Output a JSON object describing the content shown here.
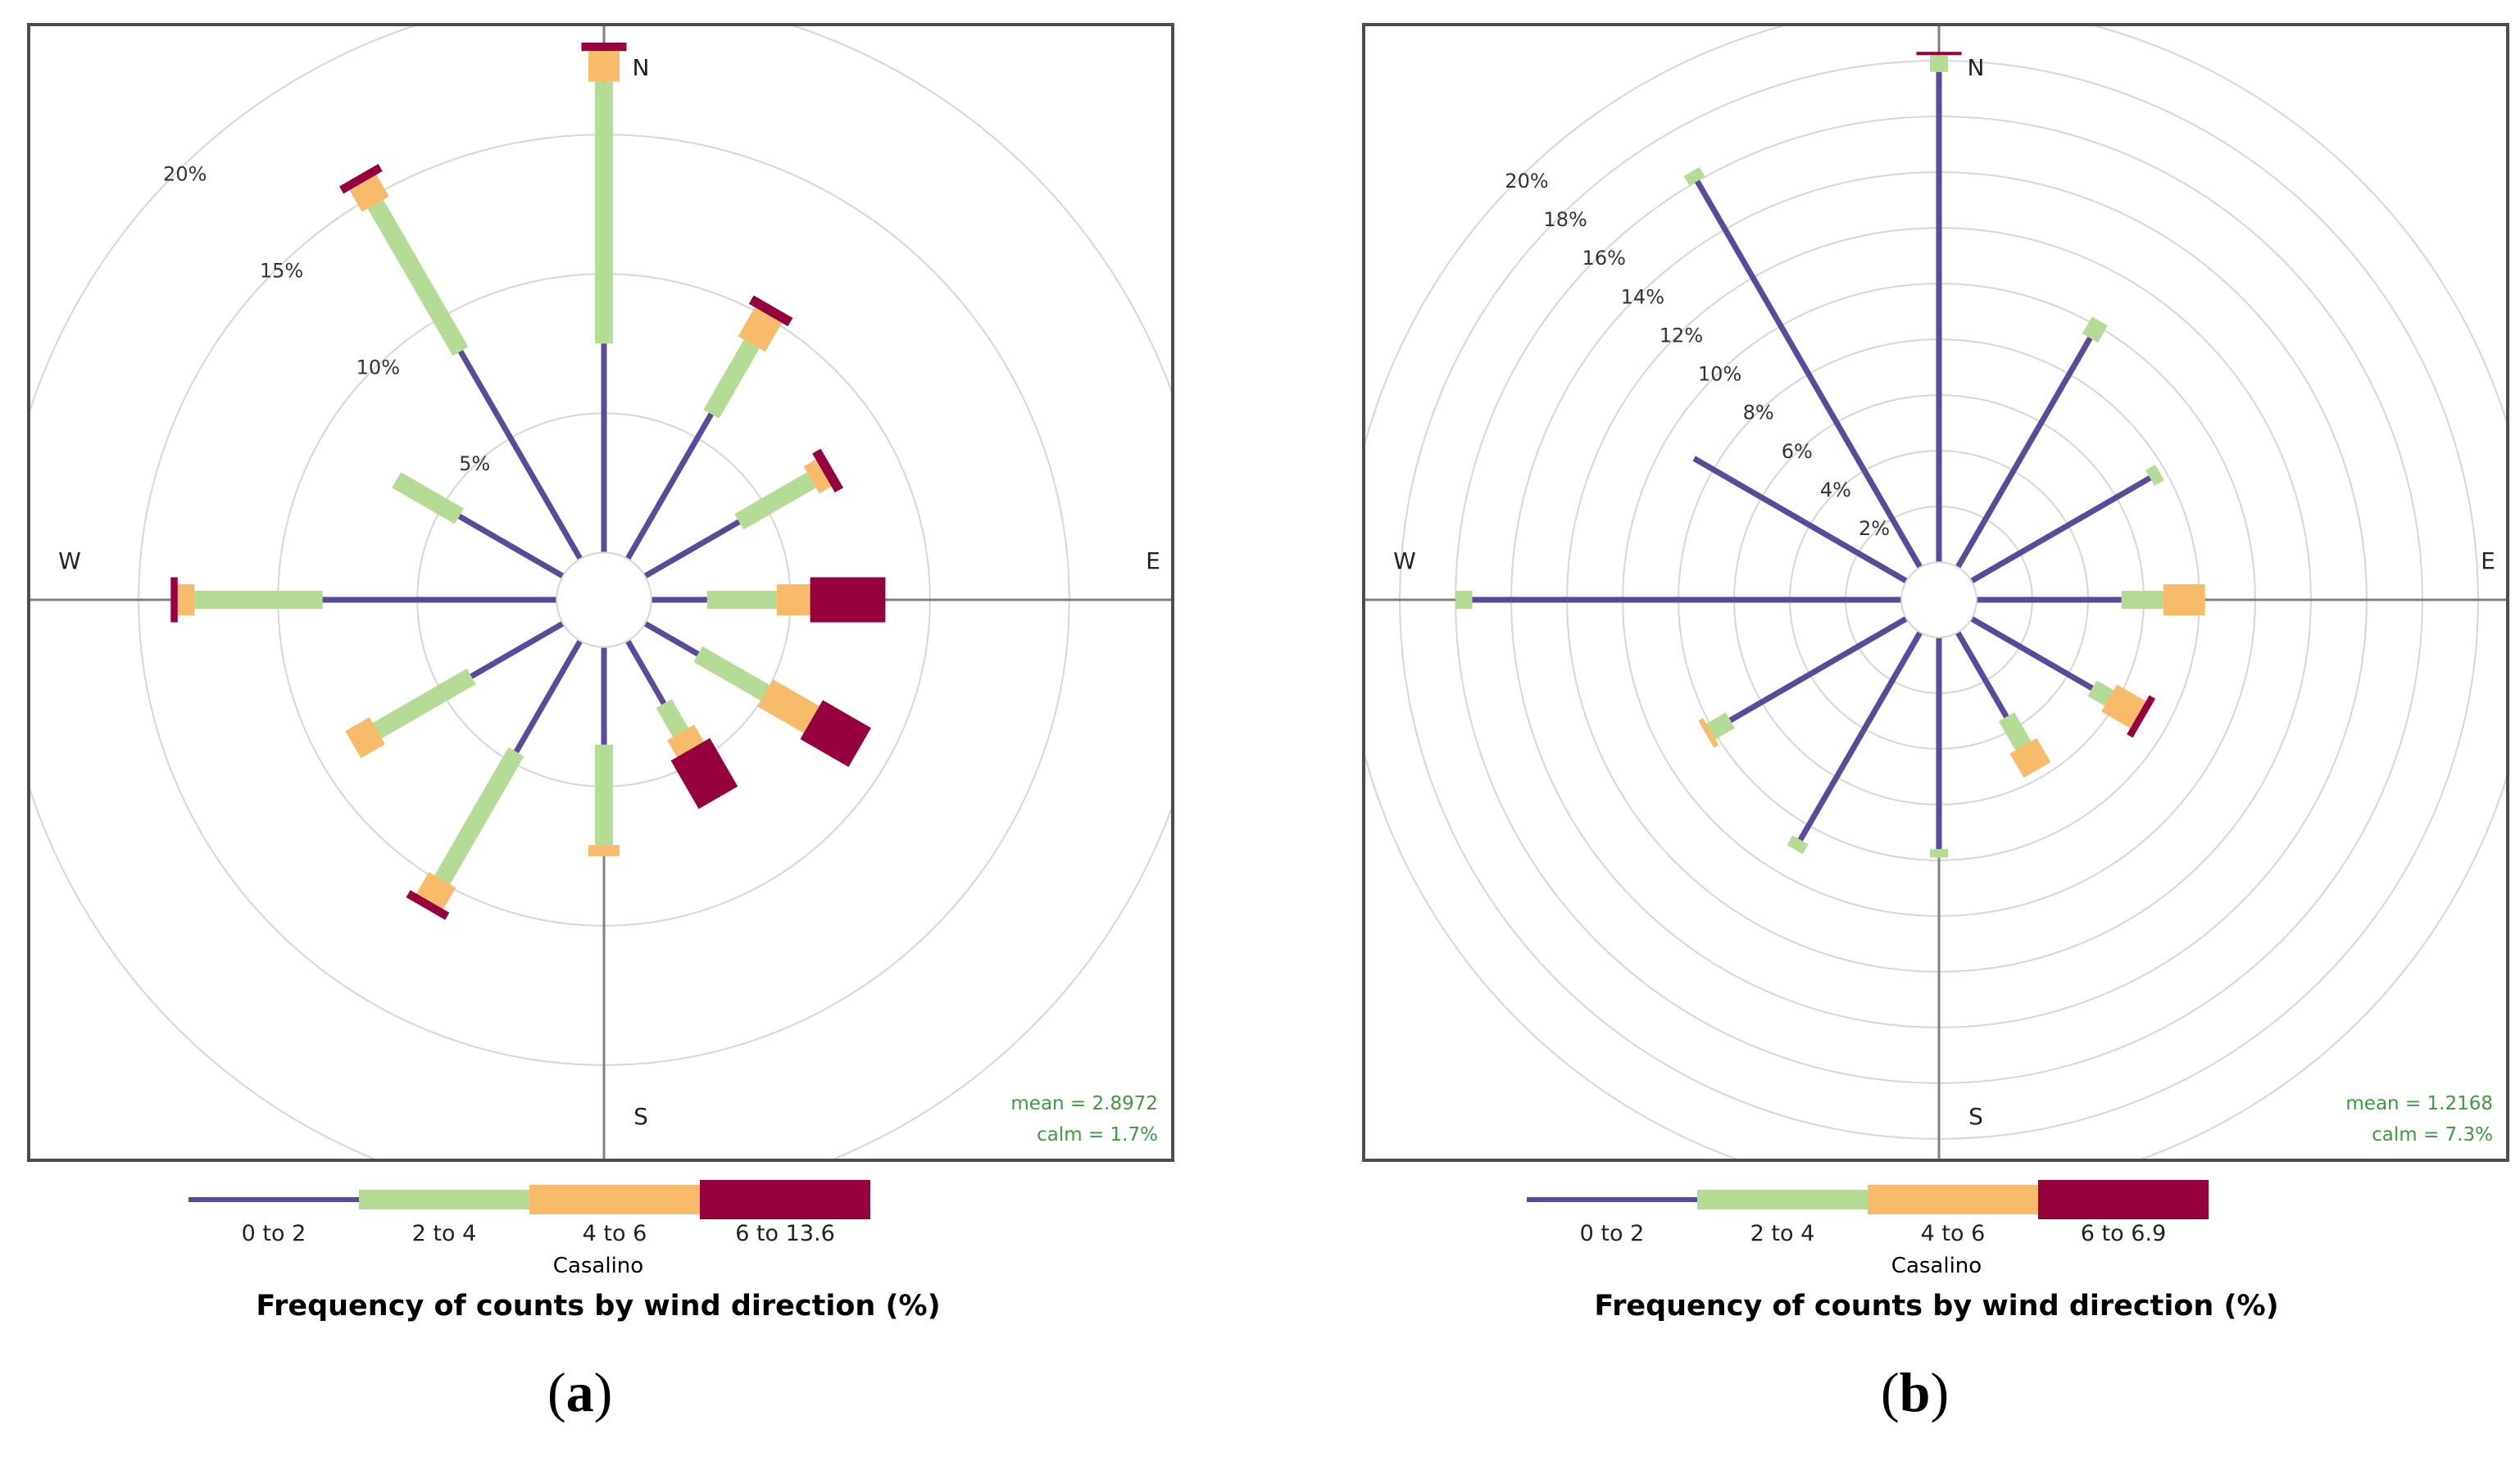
{
  "colors": {
    "bin_0_2": "#5b4a9b",
    "bin_2_4": "#b4dc94",
    "bin_4_6": "#f7bb6a",
    "bin_6_max": "#96003c",
    "grid_ring": "#d6d6d6",
    "axis": "#808080",
    "stats_text": "#3d9b3d"
  },
  "chart_data": [
    {
      "type": "windrose",
      "panel_label": "a",
      "station": "Casalino",
      "title": "Frequency of counts by wind direction (%)",
      "direction_labels": {
        "N": "N",
        "E": "E",
        "S": "S",
        "W": "W"
      },
      "ring_values": [
        5,
        10,
        15,
        20
      ],
      "ring_labels": [
        "5%",
        "10%",
        "15%",
        "20%"
      ],
      "rmax": 20,
      "calm_offset": 1.7,
      "mean_text": "mean = 2.8972",
      "calm_text": "calm = 1.7%",
      "bins": [
        "0 to 2",
        "2 to 4",
        "4 to 6",
        "6 to 13.6"
      ],
      "bin_widths": [
        7,
        22,
        38,
        55
      ],
      "directions": [
        0,
        30,
        60,
        90,
        120,
        150,
        180,
        210,
        240,
        270,
        300,
        330
      ],
      "segments": [
        [
          7.5,
          9.4,
          1.1,
          0.3
        ],
        [
          6.0,
          2.9,
          1.2,
          0.35
        ],
        [
          3.9,
          3.0,
          0.5,
          0.35
        ],
        [
          2.0,
          2.5,
          1.2,
          2.7
        ],
        [
          2.2,
          2.8,
          1.9,
          2.0
        ],
        [
          2.6,
          1.2,
          0.7,
          2.0
        ],
        [
          3.5,
          3.6,
          0.4,
          0.0
        ],
        [
          4.6,
          5.3,
          0.9,
          0.3
        ],
        [
          3.8,
          3.9,
          1.0,
          0.0
        ],
        [
          8.4,
          4.6,
          0.6,
          0.25
        ],
        [
          4.3,
          2.6,
          0.0,
          0.0
        ],
        [
          8.6,
          6.1,
          0.9,
          0.3
        ]
      ]
    },
    {
      "type": "windrose",
      "panel_label": "b",
      "station": "Casalino",
      "title": "Frequency of counts by wind direction (%)",
      "direction_labels": {
        "N": "N",
        "E": "E",
        "S": "S",
        "W": "W"
      },
      "ring_values": [
        2,
        4,
        6,
        8,
        10,
        12,
        14,
        16,
        18,
        20
      ],
      "ring_labels": [
        "2%",
        "4%",
        "6%",
        "8%",
        "10%",
        "12%",
        "14%",
        "16%",
        "18%",
        "20%"
      ],
      "rmax": 20,
      "calm_offset": 1.35,
      "mean_text": "mean = 1.2168",
      "calm_text": "calm = 7.3%",
      "bins": [
        "0 to 2",
        "2 to 4",
        "4 to 6",
        "6 to 6.9"
      ],
      "bin_widths": [
        7,
        22,
        38,
        55
      ],
      "directions": [
        0,
        30,
        60,
        90,
        120,
        150,
        180,
        210,
        240,
        270,
        300,
        330
      ],
      "segments": [
        [
          17.6,
          0.6,
          0.0,
          0.12
        ],
        [
          9.5,
          0.7,
          0.0,
          0.0
        ],
        [
          7.4,
          0.4,
          0.0,
          0.0
        ],
        [
          5.2,
          1.5,
          1.5,
          0.0
        ],
        [
          5.0,
          0.7,
          1.2,
          0.25
        ],
        [
          3.5,
          1.2,
          1.0,
          0.0
        ],
        [
          7.6,
          0.3,
          0.0,
          0.0
        ],
        [
          8.6,
          0.4,
          0.0,
          0.0
        ],
        [
          7.3,
          0.8,
          0.2,
          0.0
        ],
        [
          15.4,
          0.6,
          0.0,
          0.0
        ],
        [
          8.8,
          0.0,
          0.0,
          0.0
        ],
        [
          16.0,
          0.4,
          0.0,
          0.0
        ]
      ]
    }
  ]
}
